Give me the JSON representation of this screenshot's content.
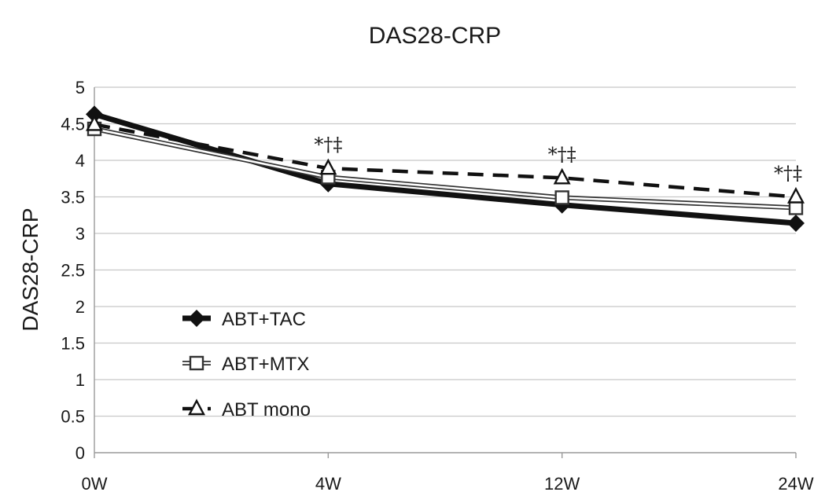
{
  "chart_data": {
    "type": "line",
    "title": "DAS28-CRP",
    "ylabel": "DAS28-CRP",
    "xlabel": "",
    "categories": [
      "0W",
      "4W",
      "12W",
      "24W"
    ],
    "ylim": [
      0,
      5
    ],
    "yticks": [
      "0",
      "0.5",
      "1",
      "1.5",
      "2",
      "2.5",
      "3",
      "3.5",
      "4",
      "4.5",
      "5"
    ],
    "grid": true,
    "legend_position": "lower-left",
    "series": [
      {
        "name": "ABT+TAC",
        "values": [
          4.63,
          3.68,
          3.39,
          3.14
        ],
        "marker": "filled-diamond",
        "line": "thick-solid",
        "color": "#111111"
      },
      {
        "name": "ABT+MTX",
        "values": [
          4.43,
          3.77,
          3.49,
          3.35
        ],
        "marker": "open-square",
        "line": "double-solid",
        "color": "#333333"
      },
      {
        "name": "ABT mono",
        "values": [
          4.49,
          3.89,
          3.76,
          3.5
        ],
        "marker": "open-triangle",
        "line": "dashed",
        "color": "#111111"
      }
    ],
    "annotations": [
      {
        "category": "4W",
        "text": "*†‡"
      },
      {
        "category": "12W",
        "text": "*†‡"
      },
      {
        "category": "24W",
        "text": "*†‡"
      }
    ]
  }
}
